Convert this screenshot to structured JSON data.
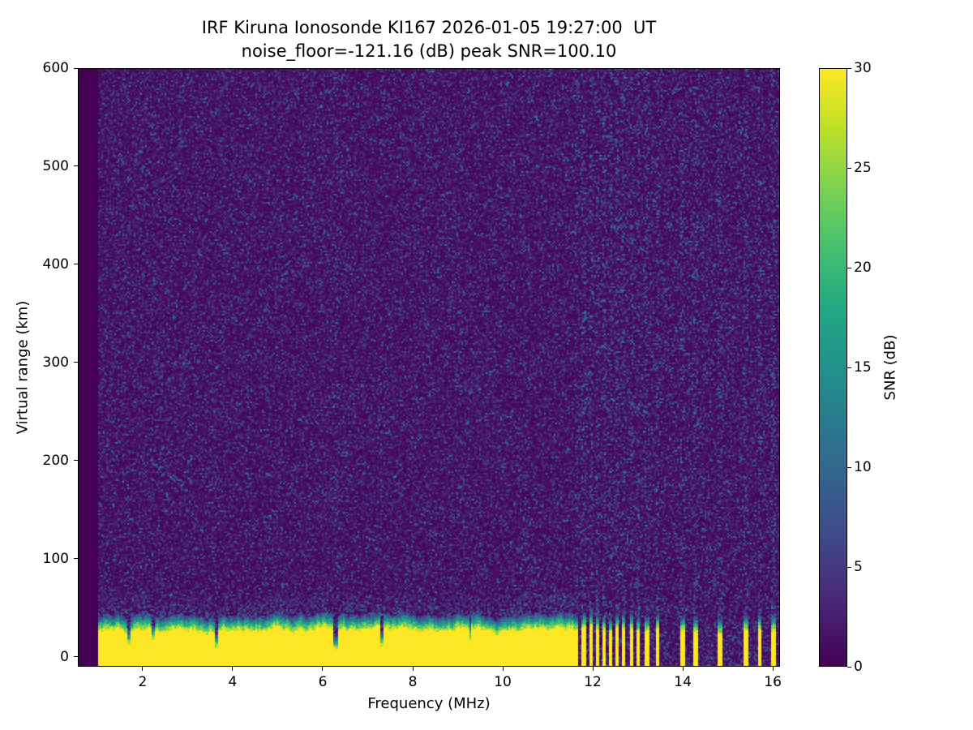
{
  "chart_data": {
    "type": "heatmap",
    "title": "IRF Kiruna Ionosonde KI167 2026-01-05 19:27:00  UT",
    "subtitle": "noise_floor=-121.16 (dB) peak SNR=100.10",
    "xlabel": "Frequency (MHz)",
    "ylabel": "Virtual range (km)",
    "xlim": [
      0.56,
      16.16
    ],
    "ylim": [
      -10,
      600
    ],
    "xticks": [
      2,
      4,
      6,
      8,
      10,
      12,
      14,
      16
    ],
    "yticks": [
      0,
      100,
      200,
      300,
      400,
      500,
      600
    ],
    "grid": false,
    "colorbar": {
      "label": "SNR (dB)",
      "vmin": 0,
      "vmax": 30,
      "ticks": [
        0,
        5,
        10,
        15,
        20,
        25,
        30
      ],
      "colormap": "viridis"
    },
    "colormap_stops": [
      "#440154",
      "#482475",
      "#414487",
      "#355f8d",
      "#2a788e",
      "#21918c",
      "#22a884",
      "#44bf70",
      "#7ad151",
      "#bddf26",
      "#fde725"
    ],
    "heatmap": {
      "seed": 16727,
      "freq_range": [
        0.98,
        16.16
      ],
      "background_snr_db": [
        0,
        2
      ],
      "speckle_snr_db": [
        3,
        15
      ],
      "ground_band": {
        "base_top_km": 26,
        "top_jitter_km": 8,
        "taper_km": 16,
        "scatter_km": 20,
        "peak_snr": 30
      },
      "band_notches": [
        {
          "f": 1.68,
          "w": 0.06,
          "top_km": 12
        },
        {
          "f": 2.22,
          "w": 0.05,
          "top_km": 16
        },
        {
          "f": 3.63,
          "w": 0.08,
          "top_km": 8
        },
        {
          "f": 6.28,
          "w": 0.09,
          "top_km": 6
        },
        {
          "f": 7.32,
          "w": 0.07,
          "top_km": 10
        },
        {
          "f": 9.28,
          "w": 0.05,
          "top_km": 17
        }
      ],
      "band_comb": {
        "start": 11.62,
        "end": 13.1,
        "period": 0.15,
        "duty": 0.5
      },
      "band_stripes": [
        [
          13.17,
          13.26
        ],
        [
          13.4,
          13.49
        ],
        [
          13.95,
          14.05
        ],
        [
          14.26,
          14.36
        ],
        [
          14.78,
          14.9
        ],
        [
          15.36,
          15.46
        ],
        [
          15.68,
          15.78
        ],
        [
          15.98,
          16.07
        ]
      ],
      "noisy_columns": [
        {
          "f": 2.2,
          "w": 0.06,
          "boost": 0.05
        },
        {
          "f": 4.33,
          "w": 0.06,
          "boost": 0.05
        },
        {
          "f": 5.08,
          "w": 0.05,
          "boost": 0.04
        },
        {
          "f": 6.3,
          "w": 0.08,
          "boost": 0.06
        },
        {
          "f": 7.3,
          "w": 0.06,
          "boost": 0.05
        },
        {
          "f": 9.05,
          "w": 0.05,
          "boost": 0.04
        },
        {
          "f": 10.4,
          "w": 0.05,
          "boost": 0.04
        }
      ],
      "rfi_region": {
        "start": 11.62,
        "stripe_boost": 0.12,
        "base_boost": 0.02
      },
      "echo_trace": {
        "snr_min": 7,
        "snr_max": 14,
        "points": [
          [
            2.12,
            206
          ],
          [
            2.2,
            201
          ],
          [
            2.28,
            196
          ],
          [
            2.38,
            192
          ],
          [
            2.48,
            188
          ],
          [
            2.58,
            184
          ],
          [
            2.7,
            180
          ],
          [
            2.82,
            176
          ],
          [
            2.94,
            172
          ]
        ]
      }
    }
  }
}
